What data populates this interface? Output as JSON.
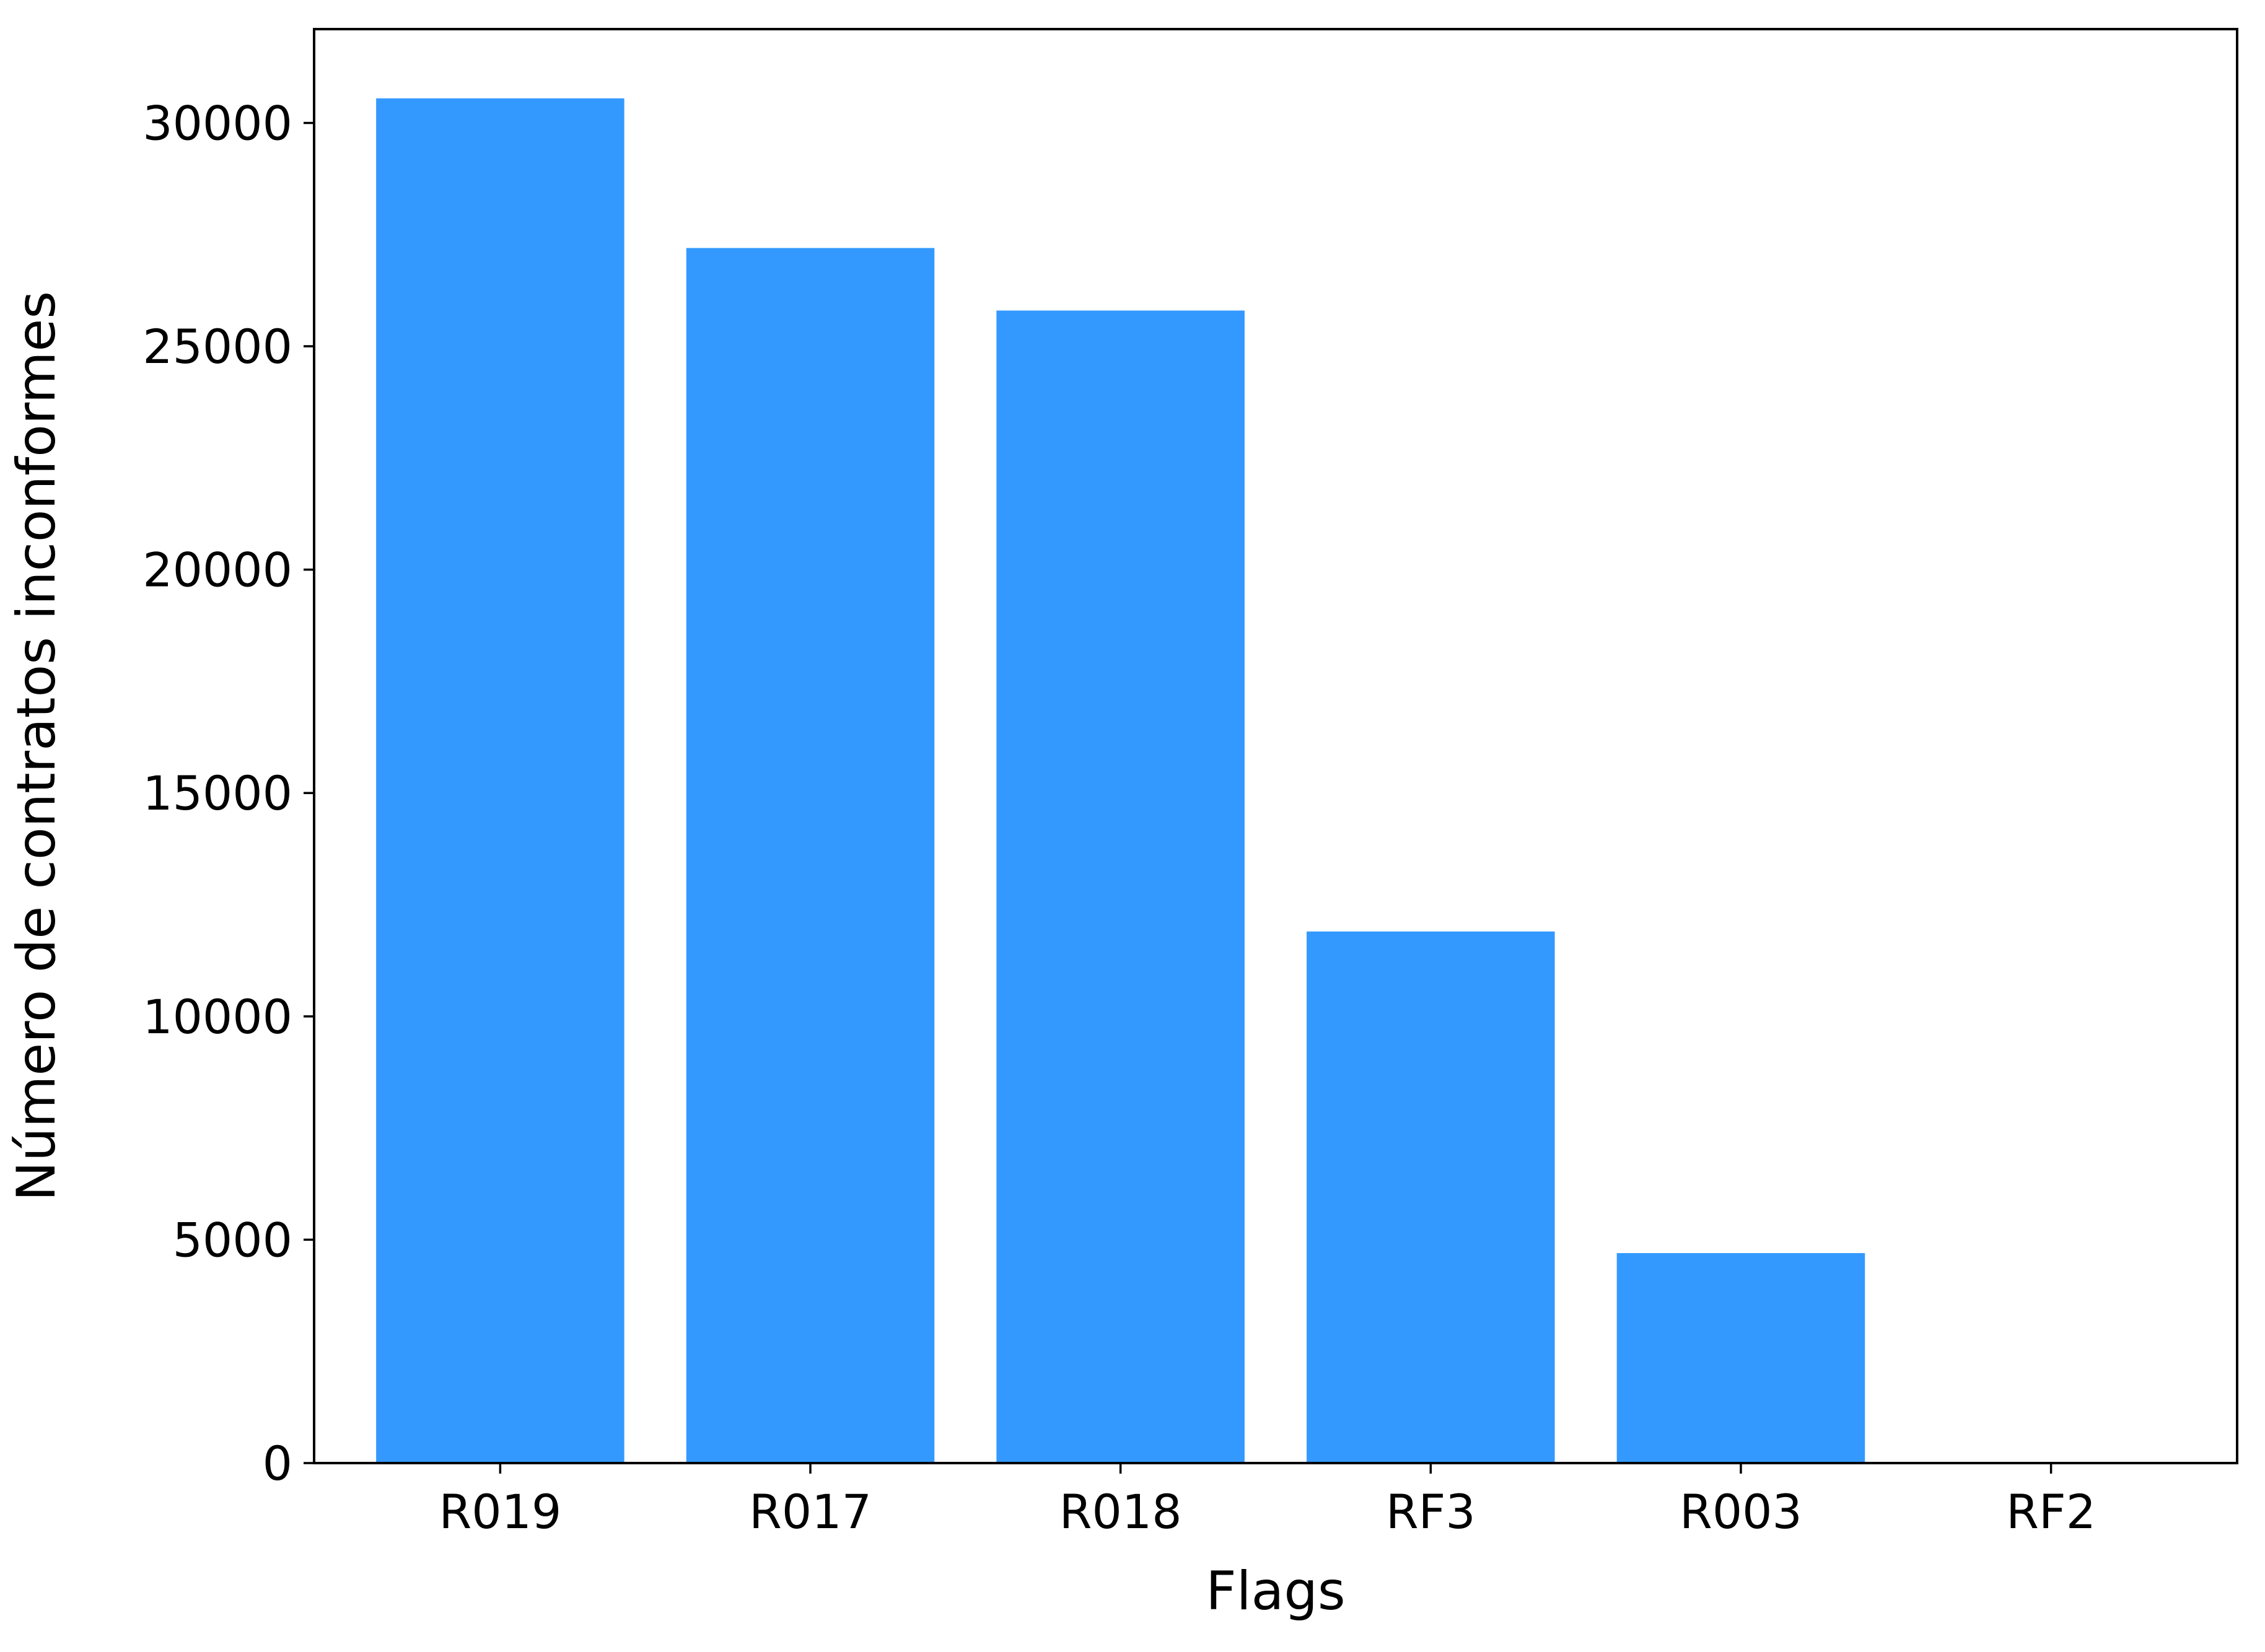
{
  "chart_data": {
    "type": "bar",
    "title": "",
    "xlabel": "Flags",
    "ylabel": "Número de contratos inconformes",
    "categories": [
      "R019",
      "R017",
      "R018",
      "RF3",
      "R003",
      "RF2"
    ],
    "values": [
      30550,
      27200,
      25800,
      11900,
      4700,
      0
    ],
    "ylim": [
      0,
      32100
    ],
    "yticks": [
      0,
      5000,
      10000,
      15000,
      20000,
      25000,
      30000
    ],
    "bar_color": "#3399ff",
    "grid": false,
    "legend": "none"
  }
}
